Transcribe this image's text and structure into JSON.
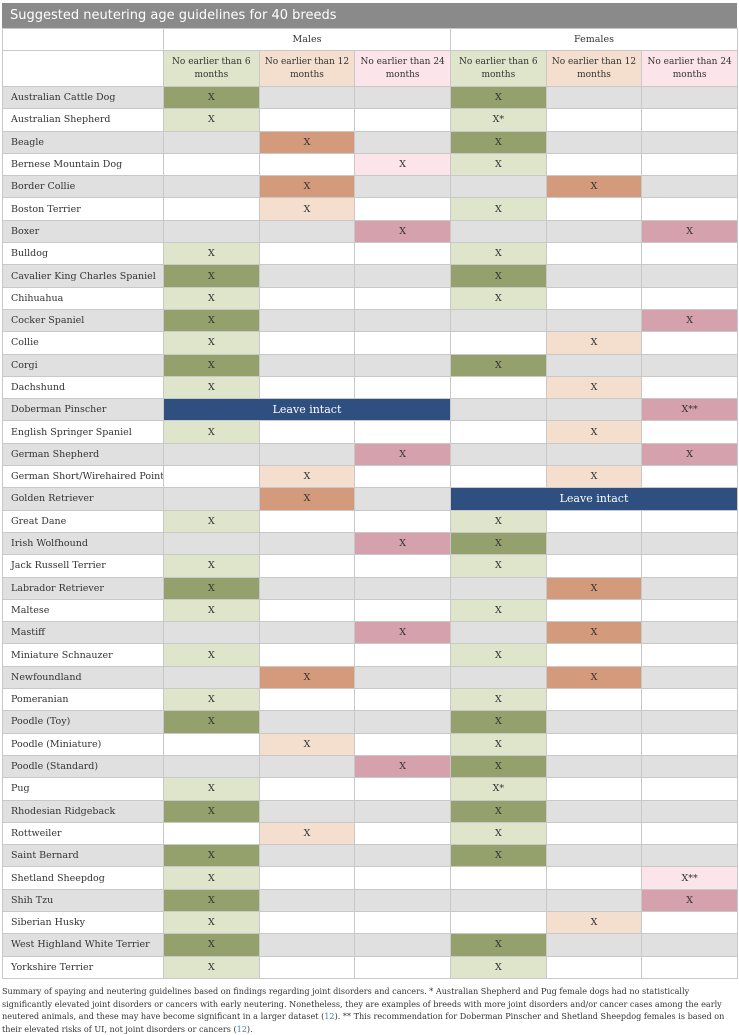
{
  "title": "Suggested neutering age guidelines for 40 breeds",
  "groups": {
    "males": "Males",
    "females": "Females"
  },
  "headers": [
    "No earlier than 6 months",
    "No earlier than 12 months",
    "No earlier than 24 months",
    "No earlier than 6 months",
    "No earlier than 12 months",
    "No earlier than 24 months"
  ],
  "mark": "X",
  "leave_intact": "Leave intact",
  "colors": {
    "light_green": "#dfe5cb",
    "dark_green": "#95a16c",
    "light_orange": "#f4dfcf",
    "dark_orange": "#d49a7c",
    "light_pink": "#fbe4ea",
    "dark_pink": "#d4a1ad",
    "navy": "#2e4f80"
  },
  "rows": [
    {
      "breed": "Australian Cattle Dog",
      "m": [
        "b",
        "",
        ""
      ],
      "f": [
        "b",
        "",
        ""
      ]
    },
    {
      "breed": "Australian Shepherd",
      "m": [
        "a",
        "",
        ""
      ],
      "f": [
        "a*",
        "",
        ""
      ]
    },
    {
      "breed": "Beagle",
      "m": [
        "",
        "d",
        ""
      ],
      "f": [
        "b",
        "",
        ""
      ]
    },
    {
      "breed": "Bernese Mountain Dog",
      "m": [
        "",
        "",
        "e"
      ],
      "f": [
        "a",
        "",
        ""
      ]
    },
    {
      "breed": "Border Collie",
      "m": [
        "",
        "d",
        ""
      ],
      "f": [
        "",
        "d",
        ""
      ]
    },
    {
      "breed": "Boston Terrier",
      "m": [
        "",
        "c",
        ""
      ],
      "f": [
        "a",
        "",
        ""
      ]
    },
    {
      "breed": "Boxer",
      "m": [
        "",
        "",
        "f"
      ],
      "f": [
        "",
        "",
        "f"
      ]
    },
    {
      "breed": "Bulldog",
      "m": [
        "a",
        "",
        ""
      ],
      "f": [
        "a",
        "",
        ""
      ]
    },
    {
      "breed": "Cavalier King Charles Spaniel",
      "m": [
        "b",
        "",
        ""
      ],
      "f": [
        "b",
        "",
        ""
      ]
    },
    {
      "breed": "Chihuahua",
      "m": [
        "a",
        "",
        ""
      ],
      "f": [
        "a",
        "",
        ""
      ]
    },
    {
      "breed": "Cocker Spaniel",
      "m": [
        "b",
        "",
        ""
      ],
      "f": [
        "",
        "",
        "f"
      ]
    },
    {
      "breed": "Collie",
      "m": [
        "a",
        "",
        ""
      ],
      "f": [
        "",
        "c",
        ""
      ]
    },
    {
      "breed": "Corgi",
      "m": [
        "b",
        "",
        ""
      ],
      "f": [
        "b",
        "",
        ""
      ]
    },
    {
      "breed": "Dachshund",
      "m": [
        "a",
        "",
        ""
      ],
      "f": [
        "",
        "c",
        ""
      ]
    },
    {
      "breed": "Doberman Pinscher",
      "m": "intact",
      "f": [
        "",
        "",
        "f**"
      ]
    },
    {
      "breed": "English Springer Spaniel",
      "m": [
        "a",
        "",
        ""
      ],
      "f": [
        "",
        "c",
        ""
      ]
    },
    {
      "breed": "German Shepherd",
      "m": [
        "",
        "",
        "f"
      ],
      "f": [
        "",
        "",
        "f"
      ]
    },
    {
      "breed": "German Short/Wirehaired Pointer",
      "m": [
        "",
        "c",
        ""
      ],
      "f": [
        "",
        "c",
        ""
      ]
    },
    {
      "breed": "Golden Retriever",
      "m": [
        "",
        "d",
        ""
      ],
      "f": "intact"
    },
    {
      "breed": "Great Dane",
      "m": [
        "a",
        "",
        ""
      ],
      "f": [
        "a",
        "",
        ""
      ]
    },
    {
      "breed": "Irish Wolfhound",
      "m": [
        "",
        "",
        "f"
      ],
      "f": [
        "b",
        "",
        ""
      ]
    },
    {
      "breed": "Jack Russell Terrier",
      "m": [
        "a",
        "",
        ""
      ],
      "f": [
        "a",
        "",
        ""
      ]
    },
    {
      "breed": "Labrador Retriever",
      "m": [
        "b",
        "",
        ""
      ],
      "f": [
        "",
        "d",
        ""
      ]
    },
    {
      "breed": "Maltese",
      "m": [
        "a",
        "",
        ""
      ],
      "f": [
        "a",
        "",
        ""
      ]
    },
    {
      "breed": "Mastiff",
      "m": [
        "",
        "",
        "f"
      ],
      "f": [
        "",
        "d",
        ""
      ]
    },
    {
      "breed": "Miniature Schnauzer",
      "m": [
        "a",
        "",
        ""
      ],
      "f": [
        "a",
        "",
        ""
      ]
    },
    {
      "breed": "Newfoundland",
      "m": [
        "",
        "d",
        ""
      ],
      "f": [
        "",
        "d",
        ""
      ]
    },
    {
      "breed": "Pomeranian",
      "m": [
        "a",
        "",
        ""
      ],
      "f": [
        "a",
        "",
        ""
      ]
    },
    {
      "breed": "Poodle (Toy)",
      "m": [
        "b",
        "",
        ""
      ],
      "f": [
        "b",
        "",
        ""
      ]
    },
    {
      "breed": "Poodle (Miniature)",
      "m": [
        "",
        "c",
        ""
      ],
      "f": [
        "a",
        "",
        ""
      ]
    },
    {
      "breed": "Poodle (Standard)",
      "m": [
        "",
        "",
        "f"
      ],
      "f": [
        "b",
        "",
        ""
      ]
    },
    {
      "breed": "Pug",
      "m": [
        "a",
        "",
        ""
      ],
      "f": [
        "a*",
        "",
        ""
      ]
    },
    {
      "breed": "Rhodesian Ridgeback",
      "m": [
        "b",
        "",
        ""
      ],
      "f": [
        "b",
        "",
        ""
      ]
    },
    {
      "breed": "Rottweiler",
      "m": [
        "",
        "c",
        ""
      ],
      "f": [
        "a",
        "",
        ""
      ]
    },
    {
      "breed": "Saint Bernard",
      "m": [
        "b",
        "",
        ""
      ],
      "f": [
        "b",
        "",
        ""
      ]
    },
    {
      "breed": "Shetland Sheepdog",
      "m": [
        "a",
        "",
        ""
      ],
      "f": [
        "",
        "",
        "e**"
      ]
    },
    {
      "breed": "Shih Tzu",
      "m": [
        "b",
        "",
        ""
      ],
      "f": [
        "",
        "",
        "f"
      ]
    },
    {
      "breed": "Siberian Husky",
      "m": [
        "a",
        "",
        ""
      ],
      "f": [
        "",
        "c",
        ""
      ]
    },
    {
      "breed": "West Highland White Terrier",
      "m": [
        "b",
        "",
        ""
      ],
      "f": [
        "b",
        "",
        ""
      ]
    },
    {
      "breed": "Yorkshire Terrier",
      "m": [
        "a",
        "",
        ""
      ],
      "f": [
        "a",
        "",
        ""
      ]
    }
  ],
  "footnote": {
    "text1": "Summary of spaying and neutering guidelines based on findings regarding joint disorders and cancers. * Australian Shepherd and Pug female dogs had no statistically significantly elevated joint disorders or cancers with early neutering. Nonetheless, they are examples of breeds with more joint disorders and/or cancer cases among the early neutered animals, and these may have become significant in a larger dataset (",
    "ref1": "12",
    "text2": "). ** This recommendation for Doberman Pinscher and Shetland Sheepdog females is based on their elevated risks of UI, not joint disorders or cancers (",
    "ref2": "12",
    "text3": ")."
  }
}
